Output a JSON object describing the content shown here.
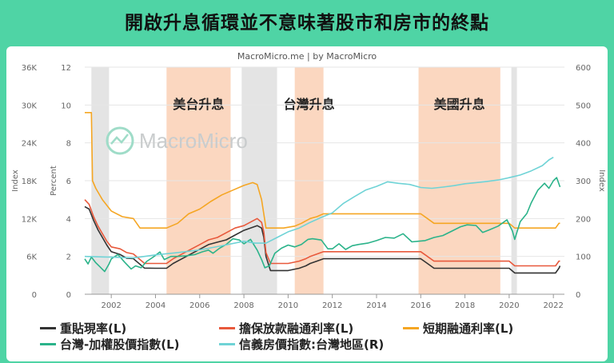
{
  "header": {
    "title": "開啟升息循環並不意味著股市和房市的終點"
  },
  "chart_data": {
    "type": "line",
    "source": "MacroMicro.me | by MacroMicro",
    "watermark": "MacroMicro",
    "x_ticks": [
      "2002",
      "2004",
      "2006",
      "2008",
      "2010",
      "2012",
      "2014",
      "2016",
      "2018",
      "2020",
      "2022"
    ],
    "xlim": [
      2000.8,
      2022.5
    ],
    "axes": {
      "left_index": {
        "label": "Index",
        "ticks": [
          "0",
          "6K",
          "12K",
          "18K",
          "24K",
          "30K",
          "36K"
        ],
        "range": [
          0,
          36000
        ]
      },
      "left_percent": {
        "label": "Percent",
        "ticks": [
          "0",
          "2",
          "4",
          "6",
          "8",
          "10",
          "12"
        ],
        "range": [
          0,
          12
        ]
      },
      "right_index": {
        "label": "Index",
        "ticks": [
          "0",
          "100",
          "200",
          "300",
          "400",
          "500",
          "600"
        ],
        "range": [
          0,
          600
        ]
      }
    },
    "recession_periods": [
      [
        2001.1,
        2001.9
      ],
      [
        2007.9,
        2009.5
      ],
      [
        2020.1,
        2020.35
      ]
    ],
    "hike_periods": [
      {
        "label": "美台升息",
        "range": [
          2004.5,
          2007.4
        ]
      },
      {
        "label": "台灣升息",
        "range": [
          2010.3,
          2011.6
        ]
      },
      {
        "label": "美國升息",
        "range": [
          2015.9,
          2019.6
        ]
      }
    ],
    "series": [
      {
        "name": "重貼現率(L)",
        "axis": "left_percent",
        "color": "#333333",
        "points": [
          [
            2000.8,
            4.63
          ],
          [
            2001.0,
            4.5
          ],
          [
            2001.2,
            3.9
          ],
          [
            2001.4,
            3.4
          ],
          [
            2001.6,
            3.0
          ],
          [
            2001.8,
            2.6
          ],
          [
            2002.0,
            2.25
          ],
          [
            2002.4,
            2.1
          ],
          [
            2002.7,
            1.9
          ],
          [
            2003.0,
            1.88
          ],
          [
            2003.5,
            1.38
          ],
          [
            2004.0,
            1.375
          ],
          [
            2004.5,
            1.375
          ],
          [
            2004.8,
            1.625
          ],
          [
            2005.2,
            1.875
          ],
          [
            2005.6,
            2.125
          ],
          [
            2006.0,
            2.375
          ],
          [
            2006.4,
            2.625
          ],
          [
            2006.8,
            2.75
          ],
          [
            2007.2,
            2.875
          ],
          [
            2007.6,
            3.125
          ],
          [
            2008.0,
            3.375
          ],
          [
            2008.6,
            3.625
          ],
          [
            2008.8,
            3.5
          ],
          [
            2008.9,
            3.0
          ],
          [
            2009.0,
            2.0
          ],
          [
            2009.2,
            1.25
          ],
          [
            2010.0,
            1.25
          ],
          [
            2010.5,
            1.375
          ],
          [
            2010.8,
            1.5
          ],
          [
            2011.0,
            1.625
          ],
          [
            2011.3,
            1.75
          ],
          [
            2011.6,
            1.875
          ],
          [
            2012.0,
            1.875
          ],
          [
            2016.0,
            1.875
          ],
          [
            2016.3,
            1.625
          ],
          [
            2016.6,
            1.375
          ],
          [
            2020.0,
            1.375
          ],
          [
            2020.25,
            1.125
          ],
          [
            2022.1,
            1.125
          ],
          [
            2022.25,
            1.375
          ],
          [
            2022.3,
            1.5
          ]
        ]
      },
      {
        "name": "擔保放款融通利率(L)",
        "axis": "left_percent",
        "color": "#e8593c",
        "points": [
          [
            2000.8,
            5.0
          ],
          [
            2001.0,
            4.75
          ],
          [
            2001.2,
            4.1
          ],
          [
            2001.4,
            3.6
          ],
          [
            2001.6,
            3.2
          ],
          [
            2001.8,
            2.8
          ],
          [
            2002.0,
            2.5
          ],
          [
            2002.4,
            2.4
          ],
          [
            2002.7,
            2.2
          ],
          [
            2003.0,
            2.13
          ],
          [
            2003.5,
            1.63
          ],
          [
            2004.0,
            1.625
          ],
          [
            2004.5,
            1.625
          ],
          [
            2004.8,
            1.875
          ],
          [
            2005.2,
            2.125
          ],
          [
            2005.6,
            2.375
          ],
          [
            2006.0,
            2.625
          ],
          [
            2006.4,
            2.875
          ],
          [
            2006.8,
            3.0
          ],
          [
            2007.2,
            3.25
          ],
          [
            2007.6,
            3.5
          ],
          [
            2008.0,
            3.625
          ],
          [
            2008.6,
            4.0
          ],
          [
            2008.8,
            3.8
          ],
          [
            2008.9,
            3.3
          ],
          [
            2009.0,
            2.2
          ],
          [
            2009.2,
            1.625
          ],
          [
            2010.0,
            1.625
          ],
          [
            2010.5,
            1.75
          ],
          [
            2010.8,
            1.875
          ],
          [
            2011.0,
            2.0
          ],
          [
            2011.3,
            2.125
          ],
          [
            2011.6,
            2.25
          ],
          [
            2012.0,
            2.25
          ],
          [
            2016.0,
            2.25
          ],
          [
            2016.3,
            2.0
          ],
          [
            2016.6,
            1.75
          ],
          [
            2020.0,
            1.75
          ],
          [
            2020.25,
            1.5
          ],
          [
            2022.1,
            1.5
          ],
          [
            2022.25,
            1.75
          ],
          [
            2022.3,
            1.75
          ]
        ]
      },
      {
        "name": "短期融通利率(L)",
        "axis": "left_percent",
        "color": "#f5a623",
        "points": [
          [
            2000.8,
            9.6
          ],
          [
            2001.1,
            9.6
          ],
          [
            2001.15,
            6.0
          ],
          [
            2001.3,
            5.6
          ],
          [
            2001.6,
            5.0
          ],
          [
            2002.0,
            4.4
          ],
          [
            2002.5,
            4.1
          ],
          [
            2003.0,
            4.0
          ],
          [
            2003.3,
            3.5
          ],
          [
            2004.5,
            3.5
          ],
          [
            2005.0,
            3.75
          ],
          [
            2005.5,
            4.25
          ],
          [
            2006.0,
            4.5
          ],
          [
            2006.5,
            4.9
          ],
          [
            2007.0,
            5.25
          ],
          [
            2007.5,
            5.5
          ],
          [
            2008.0,
            5.75
          ],
          [
            2008.4,
            5.9
          ],
          [
            2008.6,
            5.8
          ],
          [
            2008.8,
            5.0
          ],
          [
            2009.0,
            3.5
          ],
          [
            2009.2,
            3.5
          ],
          [
            2009.8,
            3.5
          ],
          [
            2010.3,
            3.6
          ],
          [
            2010.6,
            3.75
          ],
          [
            2011.0,
            4.0
          ],
          [
            2011.3,
            4.1
          ],
          [
            2011.6,
            4.25
          ],
          [
            2012.0,
            4.25
          ],
          [
            2016.0,
            4.25
          ],
          [
            2016.3,
            4.0
          ],
          [
            2016.6,
            3.75
          ],
          [
            2020.0,
            3.75
          ],
          [
            2020.25,
            3.5
          ],
          [
            2022.1,
            3.5
          ],
          [
            2022.25,
            3.75
          ],
          [
            2022.3,
            3.75
          ]
        ]
      },
      {
        "name": "台灣-加權股價指數(L)",
        "axis": "left_index",
        "color": "#2bb38a",
        "points": [
          [
            2000.8,
            5600
          ],
          [
            2000.95,
            4800
          ],
          [
            2001.1,
            5900
          ],
          [
            2001.3,
            5000
          ],
          [
            2001.5,
            4300
          ],
          [
            2001.7,
            3600
          ],
          [
            2001.9,
            4800
          ],
          [
            2002.0,
            5600
          ],
          [
            2002.3,
            6300
          ],
          [
            2002.6,
            5100
          ],
          [
            2002.9,
            4000
          ],
          [
            2003.1,
            4500
          ],
          [
            2003.35,
            4200
          ],
          [
            2003.6,
            5200
          ],
          [
            2003.9,
            5900
          ],
          [
            2004.2,
            6700
          ],
          [
            2004.4,
            5500
          ],
          [
            2004.7,
            6000
          ],
          [
            2005.0,
            6000
          ],
          [
            2005.4,
            6100
          ],
          [
            2005.8,
            6300
          ],
          [
            2006.1,
            6700
          ],
          [
            2006.4,
            7000
          ],
          [
            2006.6,
            6500
          ],
          [
            2006.9,
            7300
          ],
          [
            2007.2,
            7900
          ],
          [
            2007.5,
            8800
          ],
          [
            2007.8,
            8600
          ],
          [
            2008.0,
            8000
          ],
          [
            2008.3,
            8700
          ],
          [
            2008.6,
            7000
          ],
          [
            2008.8,
            5500
          ],
          [
            2008.95,
            4200
          ],
          [
            2009.15,
            4500
          ],
          [
            2009.4,
            6500
          ],
          [
            2009.7,
            7300
          ],
          [
            2010.0,
            7800
          ],
          [
            2010.3,
            7500
          ],
          [
            2010.6,
            7900
          ],
          [
            2010.9,
            8700
          ],
          [
            2011.1,
            8800
          ],
          [
            2011.5,
            8600
          ],
          [
            2011.8,
            7200
          ],
          [
            2012.0,
            7200
          ],
          [
            2012.3,
            8000
          ],
          [
            2012.6,
            7100
          ],
          [
            2012.9,
            7700
          ],
          [
            2013.2,
            7900
          ],
          [
            2013.6,
            8100
          ],
          [
            2014.0,
            8500
          ],
          [
            2014.4,
            9000
          ],
          [
            2014.8,
            8900
          ],
          [
            2015.2,
            9600
          ],
          [
            2015.6,
            8300
          ],
          [
            2015.9,
            8400
          ],
          [
            2016.2,
            8500
          ],
          [
            2016.6,
            9000
          ],
          [
            2017.0,
            9300
          ],
          [
            2017.4,
            10000
          ],
          [
            2017.8,
            10700
          ],
          [
            2018.1,
            11000
          ],
          [
            2018.5,
            10900
          ],
          [
            2018.8,
            9800
          ],
          [
            2019.1,
            10200
          ],
          [
            2019.5,
            10800
          ],
          [
            2019.9,
            11800
          ],
          [
            2020.15,
            10000
          ],
          [
            2020.25,
            8700
          ],
          [
            2020.5,
            11500
          ],
          [
            2020.8,
            12800
          ],
          [
            2021.0,
            14500
          ],
          [
            2021.3,
            16500
          ],
          [
            2021.6,
            17600
          ],
          [
            2021.8,
            16800
          ],
          [
            2022.0,
            18000
          ],
          [
            2022.15,
            18500
          ],
          [
            2022.3,
            17000
          ]
        ]
      },
      {
        "name": "信義房價指數:台灣地區(R)",
        "axis": "right_index",
        "color": "#6fd3d6",
        "points": [
          [
            2000.8,
            100
          ],
          [
            2002.0,
            98
          ],
          [
            2003.0,
            96
          ],
          [
            2004.0,
            104
          ],
          [
            2005.0,
            110
          ],
          [
            2006.0,
            117
          ],
          [
            2007.0,
            128
          ],
          [
            2008.0,
            140
          ],
          [
            2008.5,
            135
          ],
          [
            2009.0,
            135
          ],
          [
            2009.5,
            150
          ],
          [
            2010.0,
            165
          ],
          [
            2010.5,
            175
          ],
          [
            2011.0,
            190
          ],
          [
            2011.5,
            203
          ],
          [
            2012.0,
            215
          ],
          [
            2012.5,
            240
          ],
          [
            2013.0,
            258
          ],
          [
            2013.5,
            275
          ],
          [
            2014.0,
            285
          ],
          [
            2014.5,
            297
          ],
          [
            2015.0,
            293
          ],
          [
            2015.5,
            290
          ],
          [
            2016.0,
            282
          ],
          [
            2016.5,
            280
          ],
          [
            2017.0,
            283
          ],
          [
            2017.5,
            287
          ],
          [
            2018.0,
            292
          ],
          [
            2018.5,
            295
          ],
          [
            2019.0,
            298
          ],
          [
            2019.5,
            302
          ],
          [
            2020.0,
            308
          ],
          [
            2020.5,
            315
          ],
          [
            2021.0,
            326
          ],
          [
            2021.5,
            340
          ],
          [
            2021.8,
            355
          ],
          [
            2022.0,
            362
          ]
        ]
      }
    ]
  }
}
